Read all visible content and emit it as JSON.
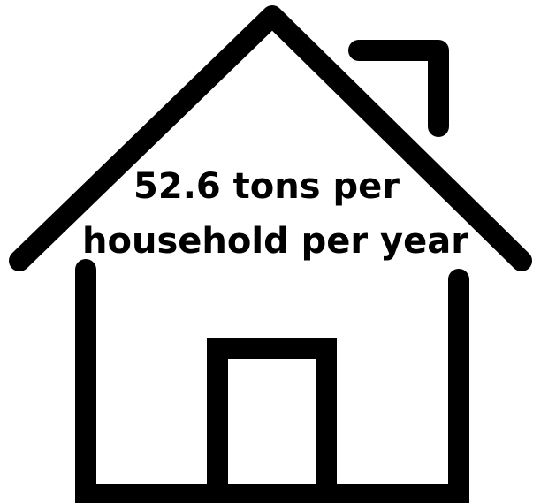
{
  "icon": {
    "name": "house-icon",
    "stroke_color": "#000000",
    "background": "#ffffff"
  },
  "caption": {
    "line1": "52.6 tons per",
    "line2": "household per year"
  }
}
